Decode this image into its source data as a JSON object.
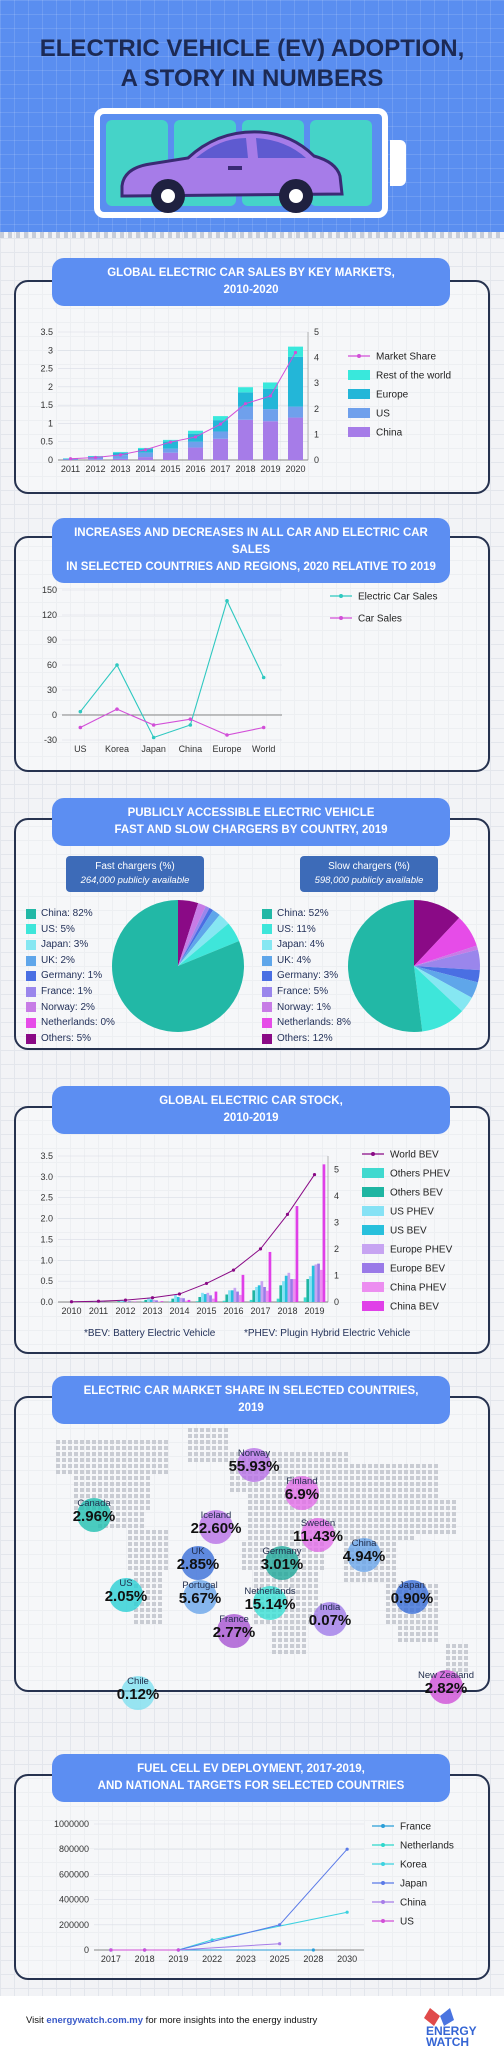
{
  "header": {
    "title": "ELECTRIC VEHICLE (EV) ADOPTION,",
    "subtitle": "A STORY IN NUMBERS"
  },
  "colors": {
    "header_bg": "#5a8ef0",
    "title": "#1c2a55",
    "pill": "#5c8ef2",
    "teal": "#45d3c8",
    "purple": "#a67ce8"
  },
  "chart_data": [
    {
      "type": "bar",
      "title": [
        "GLOBAL ELECTRIC CAR SALES BY KEY MARKETS,",
        "2010-2020"
      ],
      "categories": [
        "2011",
        "2012",
        "2013",
        "2014",
        "2015",
        "2016",
        "2017",
        "2018",
        "2019",
        "2020"
      ],
      "stacked": true,
      "ylim": [
        0,
        3.5
      ],
      "yticks": [
        "0",
        "0.5",
        "1",
        "1.5",
        "2",
        "2.5",
        "3",
        "3.5"
      ],
      "y2lim": [
        0,
        5
      ],
      "y2ticks": [
        "0",
        "1",
        "2",
        "3",
        "4",
        "5"
      ],
      "legend": "right",
      "series": [
        {
          "name": "China",
          "values": [
            0.01,
            0.02,
            0.03,
            0.08,
            0.2,
            0.34,
            0.58,
            1.1,
            1.06,
            1.16
          ],
          "color": "#a67ce8"
        },
        {
          "name": "US",
          "values": [
            0.02,
            0.05,
            0.1,
            0.12,
            0.11,
            0.16,
            0.2,
            0.36,
            0.33,
            0.3
          ],
          "color": "#6fa0ec"
        },
        {
          "name": "Europe",
          "values": [
            0.01,
            0.03,
            0.07,
            0.1,
            0.2,
            0.22,
            0.31,
            0.39,
            0.56,
            1.36
          ],
          "color": "#23b6d8"
        },
        {
          "name": "Rest of the world",
          "values": [
            0.005,
            0.01,
            0.02,
            0.03,
            0.04,
            0.08,
            0.11,
            0.14,
            0.17,
            0.28
          ],
          "color": "#39e8dc"
        }
      ],
      "line_series": {
        "name": "Market Share",
        "axis": "right",
        "values": [
          0.05,
          0.1,
          0.2,
          0.4,
          0.7,
          0.9,
          1.4,
          2.2,
          2.5,
          4.2
        ],
        "color": "#d24fd8"
      }
    },
    {
      "type": "line",
      "title": [
        "INCREASES AND DECREASES IN ALL CAR AND ELECTRIC CAR SALES",
        "IN SELECTED COUNTRIES AND REGIONS, 2020 RELATIVE TO 2019"
      ],
      "categories": [
        "US",
        "Korea",
        "Japan",
        "China",
        "Europe",
        "World"
      ],
      "ylim": [
        -30,
        150
      ],
      "yticks": [
        "-30",
        "0",
        "30",
        "60",
        "90",
        "120",
        "150"
      ],
      "legend": "right",
      "series": [
        {
          "name": "Electric Car Sales",
          "values": [
            4,
            60,
            -27,
            -12,
            137,
            45
          ],
          "color": "#2ec8c0"
        },
        {
          "name": "Car Sales",
          "values": [
            -15,
            7,
            -12,
            -5,
            -24,
            -15
          ],
          "color": "#d24fd8"
        }
      ]
    },
    {
      "type": "pie",
      "title": [
        "PUBLICLY ACCESSIBLE ELECTRIC VEHICLE",
        "FAST AND SLOW CHARGERS BY COUNTRY, 2019"
      ],
      "charts": [
        {
          "label": "Fast chargers (%)",
          "sublabel": "264,000 publicly available",
          "slices": [
            {
              "label": "China: 82%",
              "value": 82,
              "color": "#22b8a6"
            },
            {
              "label": "US: 5%",
              "value": 5,
              "color": "#3ee6da"
            },
            {
              "label": "Japan: 3%",
              "value": 3,
              "color": "#86e7f2"
            },
            {
              "label": "UK: 2%",
              "value": 2,
              "color": "#5fa6ea"
            },
            {
              "label": "Germany: 1%",
              "value": 1,
              "color": "#4a6fe3"
            },
            {
              "label": "France: 1%",
              "value": 1,
              "color": "#9a86ec"
            },
            {
              "label": "Norway: 2%",
              "value": 2,
              "color": "#c77ce6"
            },
            {
              "label": "Netherlands: 0%",
              "value": 0,
              "color": "#e64ce8"
            },
            {
              "label": "Others: 5%",
              "value": 5,
              "color": "#8a0a86"
            }
          ]
        },
        {
          "label": "Slow chargers (%)",
          "sublabel": "598,000 publicly available",
          "slices": [
            {
              "label": "China: 52%",
              "value": 52,
              "color": "#22b8a6"
            },
            {
              "label": "US: 11%",
              "value": 11,
              "color": "#3ee6da"
            },
            {
              "label": "Japan: 4%",
              "value": 4,
              "color": "#86e7f2"
            },
            {
              "label": "UK: 4%",
              "value": 4,
              "color": "#5fa6ea"
            },
            {
              "label": "Germany: 3%",
              "value": 3,
              "color": "#4a6fe3"
            },
            {
              "label": "France: 5%",
              "value": 5,
              "color": "#9a86ec"
            },
            {
              "label": "Norway: 1%",
              "value": 1,
              "color": "#c77ce6"
            },
            {
              "label": "Netherlands: 8%",
              "value": 8,
              "color": "#e64ce8"
            },
            {
              "label": "Others: 12%",
              "value": 12,
              "color": "#8a0a86"
            }
          ]
        }
      ]
    },
    {
      "type": "bar",
      "title": [
        "GLOBAL ELECTRIC CAR STOCK,",
        "2010-2019"
      ],
      "categories": [
        "2010",
        "2011",
        "2012",
        "2013",
        "2014",
        "2015",
        "2016",
        "2017",
        "2018",
        "2019"
      ],
      "ylim": [
        0,
        3.5
      ],
      "yticks": [
        "0.0",
        "0.5",
        "1.0",
        "1.5",
        "2.0",
        "2.5",
        "3.0",
        "3.5"
      ],
      "y2lim": [
        0,
        5.5
      ],
      "y2ticks": [
        "0",
        "1",
        "2",
        "3",
        "4",
        "5"
      ],
      "legend": "right",
      "series": [
        {
          "name": "Others PHEV",
          "values": [
            0,
            0,
            0,
            0.01,
            0.01,
            0.02,
            0.03,
            0.05,
            0.08,
            0.11
          ],
          "color": "#3fd9cf"
        },
        {
          "name": "Others BEV",
          "values": [
            0,
            0.01,
            0.02,
            0.05,
            0.08,
            0.12,
            0.18,
            0.28,
            0.4,
            0.55
          ],
          "color": "#1eb5a2"
        },
        {
          "name": "US PHEV",
          "values": [
            0,
            0.01,
            0.04,
            0.1,
            0.17,
            0.22,
            0.28,
            0.36,
            0.5,
            0.62
          ],
          "color": "#86e2f5"
        },
        {
          "name": "US BEV",
          "values": [
            0,
            0.01,
            0.02,
            0.06,
            0.12,
            0.19,
            0.28,
            0.4,
            0.63,
            0.87
          ],
          "color": "#28c0dc"
        },
        {
          "name": "Europe PHEV",
          "values": [
            0,
            0,
            0.01,
            0.05,
            0.1,
            0.22,
            0.34,
            0.5,
            0.7,
            0.9
          ],
          "color": "#c7a4f2"
        },
        {
          "name": "Europe BEV",
          "values": [
            0,
            0.01,
            0.02,
            0.04,
            0.09,
            0.16,
            0.25,
            0.36,
            0.55,
            0.92
          ],
          "color": "#9a7ae8"
        },
        {
          "name": "China PHEV",
          "values": [
            0,
            0,
            0,
            0.01,
            0.03,
            0.08,
            0.17,
            0.27,
            0.55,
            0.77
          ],
          "color": "#ec8ef0"
        },
        {
          "name": "China BEV",
          "values": [
            0,
            0,
            0.01,
            0.02,
            0.05,
            0.25,
            0.65,
            1.2,
            2.3,
            3.3
          ],
          "color": "#e040e8"
        }
      ],
      "line_series": {
        "name": "World BEV",
        "axis": "right",
        "values": [
          0.01,
          0.03,
          0.07,
          0.16,
          0.3,
          0.7,
          1.2,
          2.0,
          3.3,
          4.8
        ],
        "color": "#8a0a86"
      },
      "notes": [
        "*BEV: Battery Electric Vehicle",
        "*PHEV: Plugin Hybrid Electric Vehicle"
      ]
    },
    {
      "type": "map",
      "title": [
        "ELECTRIC CAR MARKET SHARE IN SELECTED COUNTRIES,",
        "2019"
      ],
      "points": [
        {
          "name": "Norway",
          "value": "55.93%",
          "color": "#b870e6"
        },
        {
          "name": "Finland",
          "value": "6.9%",
          "color": "#e46ee8"
        },
        {
          "name": "Canada",
          "value": "2.96%",
          "color": "#1fbfb0"
        },
        {
          "name": "Iceland",
          "value": "22.60%",
          "color": "#b870e6"
        },
        {
          "name": "Sweden",
          "value": "11.43%",
          "color": "#e46ee8"
        },
        {
          "name": "UK",
          "value": "2.85%",
          "color": "#3a6ed8"
        },
        {
          "name": "Germany",
          "value": "3.01%",
          "color": "#1fa79a"
        },
        {
          "name": "China",
          "value": "4.94%",
          "color": "#6aa5ea"
        },
        {
          "name": "US",
          "value": "2.05%",
          "color": "#2ad0d4"
        },
        {
          "name": "Portugal",
          "value": "5.67%",
          "color": "#6aa5ea"
        },
        {
          "name": "Netherlands",
          "value": "15.14%",
          "color": "#39e0d4"
        },
        {
          "name": "Japan",
          "value": "0.90%",
          "color": "#3a6ed8"
        },
        {
          "name": "India",
          "value": "0.07%",
          "color": "#a07ae8"
        },
        {
          "name": "France",
          "value": "2.77%",
          "color": "#a854d2"
        },
        {
          "name": "Chile",
          "value": "0.12%",
          "color": "#7fe0f0"
        },
        {
          "name": "New Zealand",
          "value": "2.82%",
          "color": "#d050d8"
        }
      ]
    },
    {
      "type": "line",
      "title": [
        "FUEL CELL EV DEPLOYMENT, 2017-2019,",
        "AND NATIONAL TARGETS FOR SELECTED COUNTRIES"
      ],
      "categories": [
        "2017",
        "2018",
        "2019",
        "2022",
        "2023",
        "2025",
        "2028",
        "2030"
      ],
      "ylim": [
        0,
        1000000
      ],
      "yticks": [
        "0",
        "200000",
        "400000",
        "600000",
        "800000",
        "1000000"
      ],
      "legend": "right",
      "series": [
        {
          "name": "France",
          "values": [
            0,
            0,
            0,
            null,
            null,
            null,
            0,
            null
          ],
          "color": "#2a9ed8"
        },
        {
          "name": "Netherlands",
          "values": [
            0,
            0,
            0,
            null,
            null,
            null,
            null,
            null
          ],
          "color": "#2ed8cc"
        },
        {
          "name": "Korea",
          "values": [
            0,
            0,
            0,
            80000,
            null,
            null,
            null,
            300000
          ],
          "color": "#3cd2e0"
        },
        {
          "name": "Japan",
          "values": [
            0,
            0,
            0,
            null,
            null,
            200000,
            null,
            800000
          ],
          "color": "#5a7ae8"
        },
        {
          "name": "China",
          "values": [
            0,
            0,
            0,
            null,
            null,
            50000,
            null,
            null
          ],
          "color": "#a67ce8"
        },
        {
          "name": "US",
          "values": [
            0,
            0,
            0,
            null,
            null,
            null,
            null,
            null
          ],
          "color": "#d24fd8"
        }
      ]
    }
  ],
  "footer": {
    "prefix": "Visit ",
    "link": "energywatch.com.my",
    "suffix": " for more insights into the energy industry",
    "logo_line1": "ENERGY",
    "logo_line2": "WATCH"
  }
}
